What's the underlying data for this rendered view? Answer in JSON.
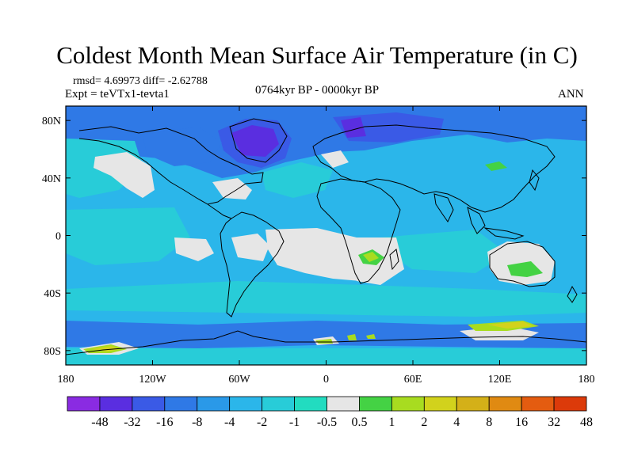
{
  "title": "Coldest Month Mean Surface Air Temperature (in C)",
  "stats": {
    "rmsd_diff": "rmsd= 4.69973 diff= -2.62788",
    "expt": "Expt = teVTx1-tevta1",
    "period": "0764kyr BP - 0000kyr BP",
    "season": "ANN"
  },
  "axes": {
    "y_ticks": [
      "80N",
      "40N",
      "0",
      "40S",
      "80S"
    ],
    "x_ticks": [
      "180",
      "120W",
      "60W",
      "0",
      "60E",
      "120E",
      "180"
    ]
  },
  "colorbar": {
    "levels": [
      "-48",
      "-32",
      "-16",
      "-8",
      "-4",
      "-2",
      "-1",
      "-0.5",
      "0.5",
      "1",
      "2",
      "4",
      "8",
      "16",
      "32",
      "48"
    ],
    "colors": [
      "#8a2be2",
      "#5a2ee0",
      "#3a5ae6",
      "#2f79e6",
      "#2a99e8",
      "#2bb6ea",
      "#28ccd8",
      "#22dcc0",
      "#e6e6e6",
      "#44d244",
      "#a8dc20",
      "#d2d21c",
      "#d4b018",
      "#e08a12",
      "#e45c10",
      "#dc3a0a"
    ]
  },
  "map_colors": {
    "base": "#2bb6ea",
    "cold": "#2f79e6",
    "colder": "#3a5ae6",
    "coldest": "#5a2ee0",
    "mild": "#28ccd8",
    "near_zero": "#e6e6e6",
    "warm1": "#44d244",
    "warm2": "#a8dc20",
    "warm3": "#d2d21c"
  }
}
